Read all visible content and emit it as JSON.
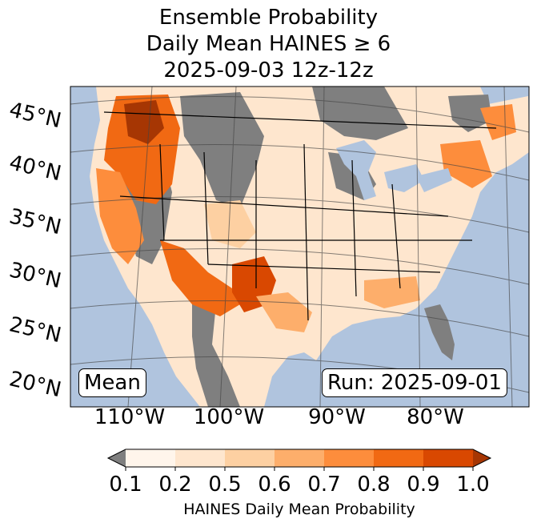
{
  "title": {
    "line1": "Ensemble Probability",
    "line2": "Daily Mean HAINES ≥ 6",
    "line3": "2025-09-03 12z-12z"
  },
  "labels": {
    "mean": "Mean",
    "run": "Run: 2025-09-01"
  },
  "latitude_labels": [
    "45°N",
    "40°N",
    "35°N",
    "30°N",
    "25°N",
    "20°N"
  ],
  "longitude_labels": [
    "110°W",
    "100°W",
    "90°W",
    "80°W"
  ],
  "colorbar": {
    "label": "HAINES Daily Mean Probability",
    "ticks": [
      "0.1",
      "0.2",
      "0.5",
      "0.6",
      "0.7",
      "0.8",
      "0.9",
      "1.0"
    ],
    "colors": [
      "#fff5eb",
      "#fee6ce",
      "#fdd0a2",
      "#fdae6b",
      "#fd8d3c",
      "#f16913",
      "#d94801",
      "#a63603"
    ],
    "under_color": "#7f7f7f"
  },
  "colors": {
    "ocean": "#b0c4de",
    "no_data_gray": "#7f7f7f",
    "land_low": "#fee6ce"
  }
}
